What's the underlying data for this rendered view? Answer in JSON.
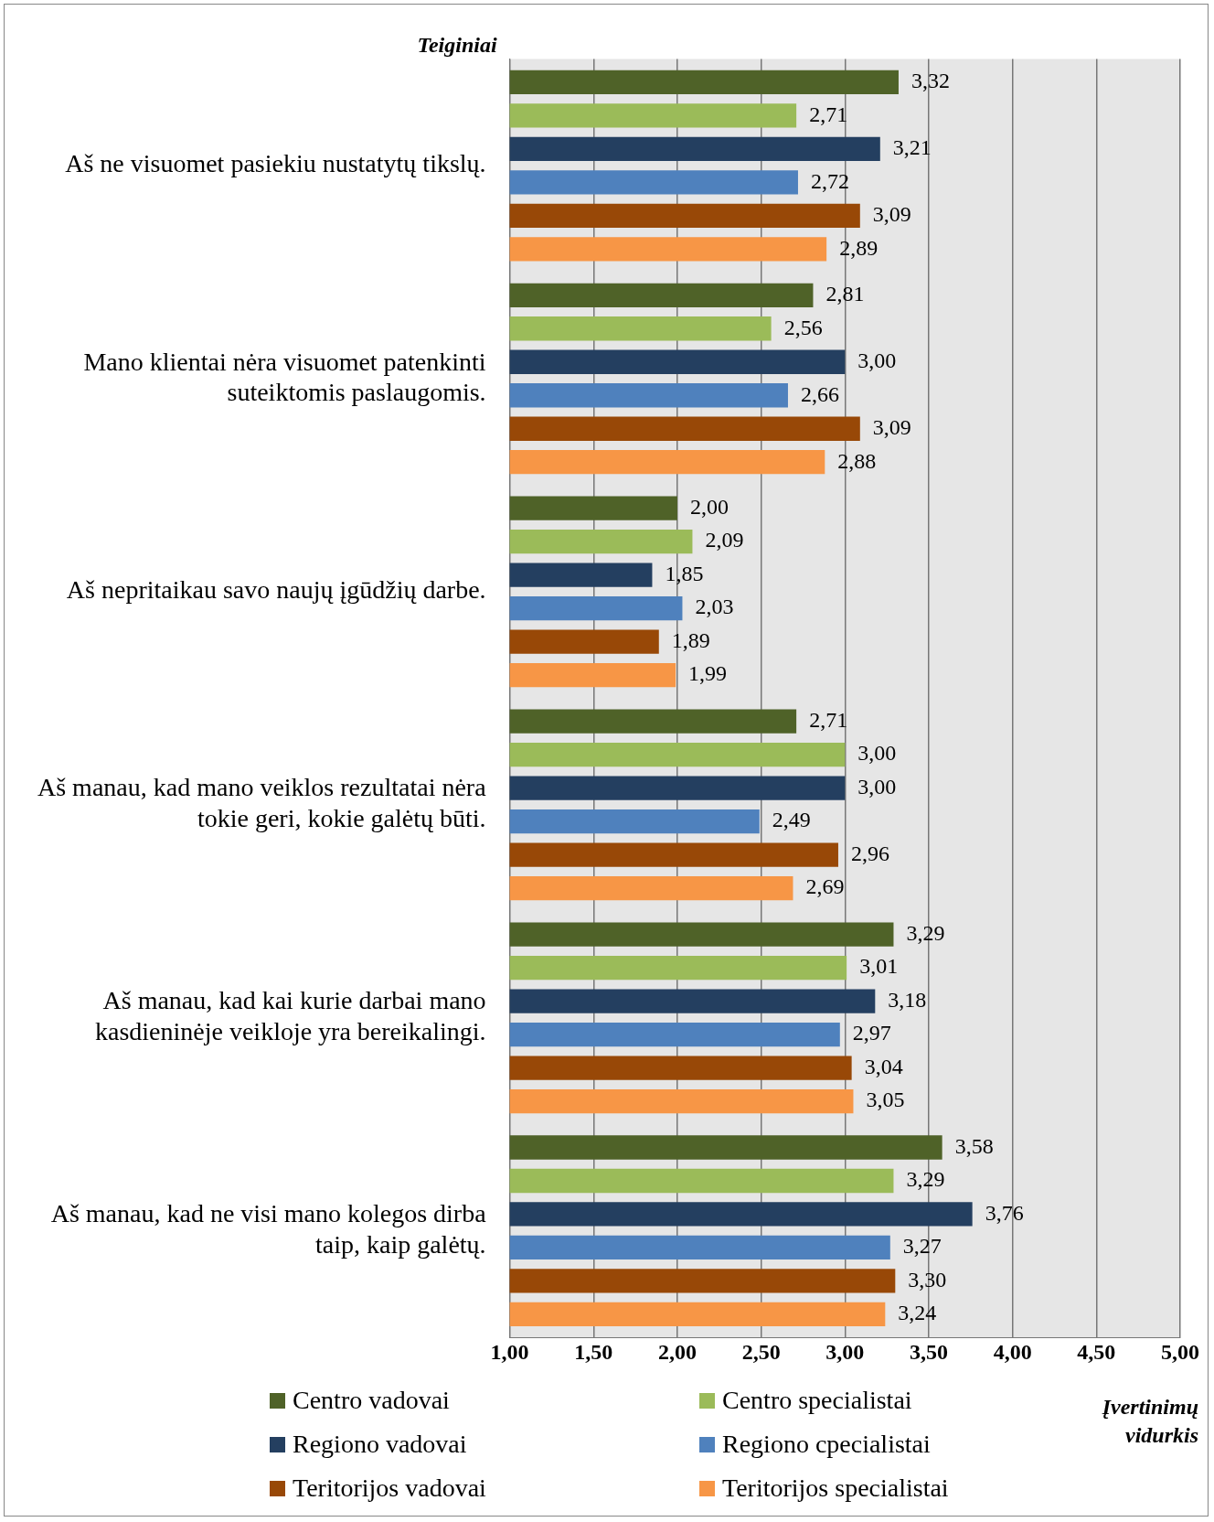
{
  "chart_data": {
    "type": "bar",
    "orientation": "horizontal",
    "ylabel": "Teiginiai",
    "xlabel": "Įvertinimų vidurkis",
    "categories": [
      "Aš ne visuomet pasiekiu nustatytų tikslų.",
      "Mano klientai nėra visuomet patenkinti suteiktomis paslaugomis.",
      "Aš nepritaikau savo naujų įgūdžių darbe.",
      "Aš manau, kad mano veiklos rezultatai nėra tokie geri, kokie galėtų būti.",
      "Aš manau, kad kai kurie darbai mano kasdieninėje veikloje yra bereikalingi.",
      "Aš manau, kad ne visi mano kolegos dirba taip, kaip galėtų."
    ],
    "series": [
      {
        "name": "Centro vadovai",
        "color": "#4f6228",
        "values": [
          3.32,
          2.81,
          2.0,
          2.71,
          3.29,
          3.58
        ],
        "value_labels": [
          "3,32",
          "2,81",
          "2,00",
          "2,71",
          "3,29",
          "3,58"
        ]
      },
      {
        "name": "Centro specialistai",
        "color": "#9bbb59",
        "values": [
          2.71,
          2.56,
          2.09,
          3.0,
          3.01,
          3.29
        ],
        "value_labels": [
          "2,71",
          "2,56",
          "2,09",
          "3,00",
          "3,01",
          "3,29"
        ]
      },
      {
        "name": "Regiono vadovai",
        "color": "#243f60",
        "values": [
          3.21,
          3.0,
          1.85,
          3.0,
          3.18,
          3.76
        ],
        "value_labels": [
          "3,21",
          "3,00",
          "1,85",
          "3,00",
          "3,18",
          "3,76"
        ]
      },
      {
        "name": "Regiono cpecialistai",
        "color": "#4f81bd",
        "values": [
          2.72,
          2.66,
          2.03,
          2.49,
          2.97,
          3.27
        ],
        "value_labels": [
          "2,72",
          "2,66",
          "2,03",
          "2,49",
          "2,97",
          "3,27"
        ]
      },
      {
        "name": "Teritorijos vadovai",
        "color": "#984807",
        "values": [
          3.09,
          3.09,
          1.89,
          2.96,
          3.04,
          3.3
        ],
        "value_labels": [
          "3,09",
          "3,09",
          "1,89",
          "2,96",
          "3,04",
          "3,30"
        ]
      },
      {
        "name": "Teritorijos specialistai",
        "color": "#f79646",
        "values": [
          2.89,
          2.88,
          1.99,
          2.69,
          3.05,
          3.24
        ],
        "value_labels": [
          "2,89",
          "2,88",
          "1,99",
          "2,69",
          "3,05",
          "3,24"
        ]
      }
    ],
    "xlim": [
      1,
      5
    ],
    "xticks": [
      {
        "value": 1,
        "label": "1,00"
      },
      {
        "value": 1.5,
        "label": "1,50"
      },
      {
        "value": 2,
        "label": "2,00"
      },
      {
        "value": 2.5,
        "label": "2,50"
      },
      {
        "value": 3,
        "label": "3,00"
      },
      {
        "value": 3.5,
        "label": "3,50"
      },
      {
        "value": 4,
        "label": "4,00"
      },
      {
        "value": 4.5,
        "label": "4,50"
      },
      {
        "value": 5,
        "label": "5,00"
      }
    ],
    "grid": "x",
    "legend": "bottom"
  }
}
